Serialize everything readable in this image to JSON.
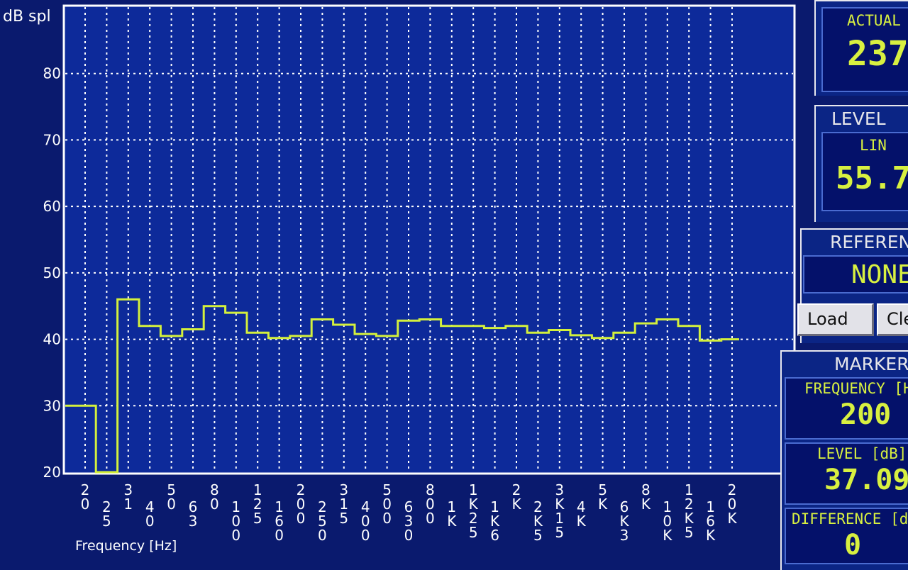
{
  "chart_data": {
    "type": "line",
    "title": "",
    "ylabel": "dB spl",
    "xlabel": "Frequency [Hz]",
    "ylim": [
      20,
      90
    ],
    "y_ticks": [
      20,
      30,
      40,
      50,
      60,
      70,
      80
    ],
    "grid": true,
    "step": true,
    "categories": [
      "20",
      "25",
      "31",
      "40",
      "50",
      "63",
      "80",
      "100",
      "125",
      "160",
      "200",
      "250",
      "315",
      "400",
      "500",
      "630",
      "800",
      "1K",
      "1K25",
      "1K6",
      "2K",
      "2K5",
      "3K15",
      "4K",
      "5K",
      "6K3",
      "8K",
      "10K",
      "12K5",
      "16K",
      "20K"
    ],
    "series": [
      {
        "color": "#d4f03c",
        "values": [
          30,
          20,
          46,
          42,
          40.5,
          41.5,
          45,
          44,
          41,
          40.2,
          40.5,
          43,
          42.2,
          40.8,
          40.5,
          42.8,
          43,
          42,
          42,
          41.7,
          42,
          41,
          41.4,
          40.6,
          40.2,
          41,
          42.4,
          43,
          42,
          39.8,
          40
        ]
      }
    ]
  },
  "actual": {
    "label": "ACTUAL",
    "value": "237"
  },
  "level": {
    "title": "LEVEL",
    "mode": "LIN",
    "value": "55.7"
  },
  "reference": {
    "title": "REFERENCE",
    "value": "NONE",
    "load_label": "Load",
    "clear_label": "Clear"
  },
  "marker": {
    "title": "MARKER",
    "frequency_label": "FREQUENCY [Hz]",
    "frequency_value": "200",
    "level_label": "LEVEL [dB]",
    "level_value": "37.09",
    "difference_label": "DIFFERENCE [dB]",
    "difference_value": "0"
  }
}
